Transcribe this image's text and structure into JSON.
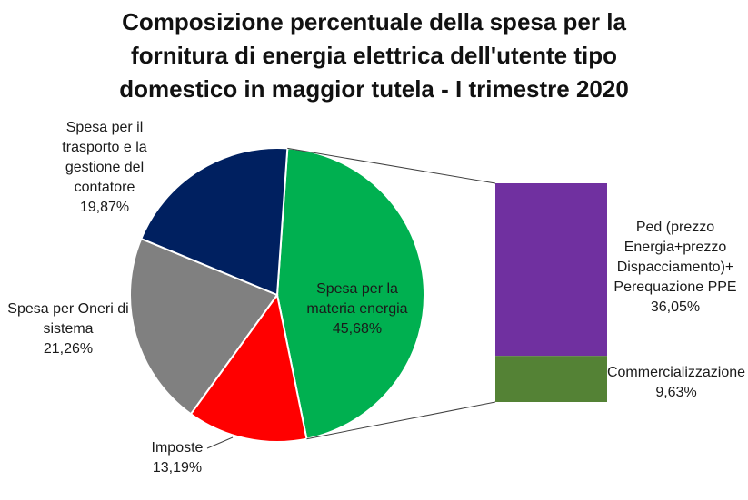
{
  "chart_data": {
    "type": "pie",
    "title_lines": [
      "Composizione percentuale della spesa per la",
      "fornitura di energia elettrica dell'utente tipo",
      "domestico in maggior tutela - I trimestre 2020"
    ],
    "slices": [
      {
        "id": "energia",
        "label_lines": [
          "Spesa per la",
          "materia energia"
        ],
        "value": 45.68,
        "value_label": "45,68%",
        "color": "#00b050"
      },
      {
        "id": "imposte",
        "label_lines": [
          "Imposte"
        ],
        "value": 13.19,
        "value_label": "13,19%",
        "color": "#ff0000"
      },
      {
        "id": "oneri",
        "label_lines": [
          "Spesa per Oneri di",
          "sistema"
        ],
        "value": 21.26,
        "value_label": "21,26%",
        "color": "#808080"
      },
      {
        "id": "trasporto",
        "label_lines": [
          "Spesa per il",
          "trasporto e la",
          "gestione del",
          "contatore"
        ],
        "value": 19.87,
        "value_label": "19,87%",
        "color": "#002060"
      }
    ],
    "breakdown": {
      "of": "energia",
      "segments": [
        {
          "id": "ped",
          "label_lines": [
            "Ped (prezzo",
            "Energia+prezzo",
            "Dispacciamento)+",
            "Perequazione PPE"
          ],
          "value": 36.05,
          "value_label": "36,05%",
          "color": "#7030a0"
        },
        {
          "id": "comm",
          "label_lines": [
            "Commercializzazione"
          ],
          "value": 9.63,
          "value_label": "9,63%",
          "color": "#548235"
        }
      ]
    }
  }
}
